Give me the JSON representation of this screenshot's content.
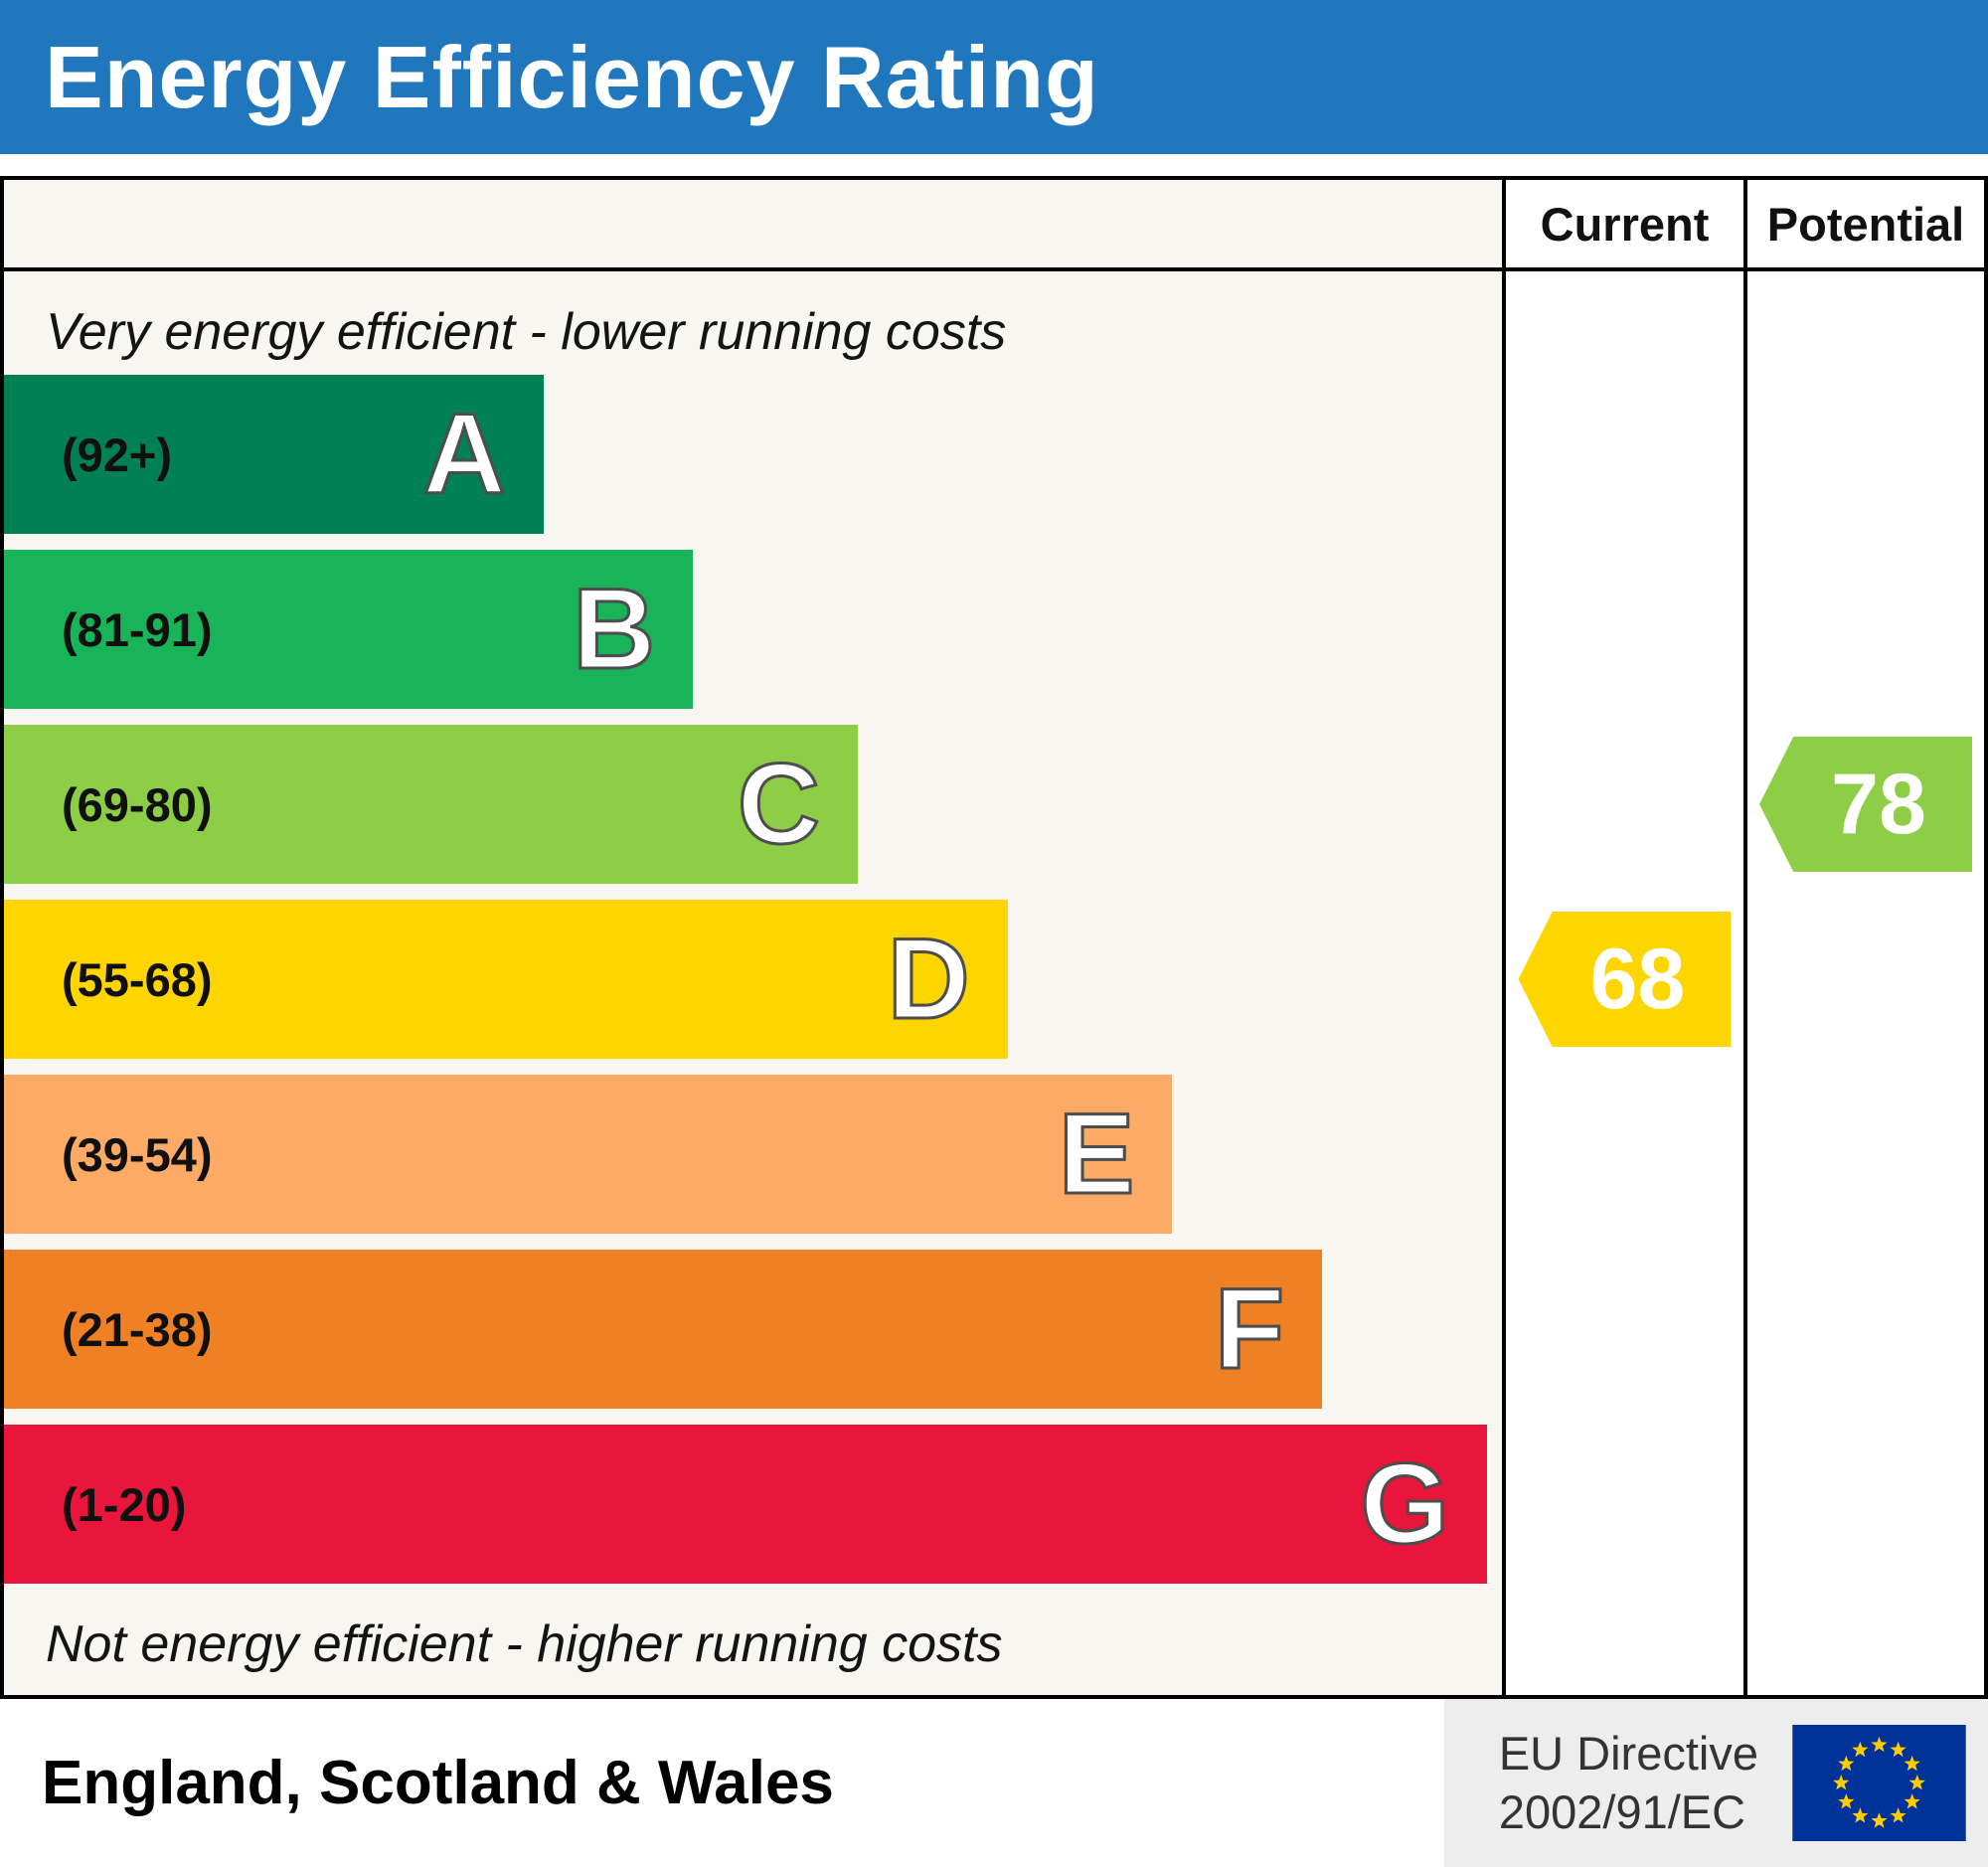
{
  "header": {
    "title": "Energy Efficiency Rating"
  },
  "columns": {
    "current_label": "Current",
    "potential_label": "Potential"
  },
  "scale": {
    "top_note": "Very energy efficient - lower running costs",
    "bottom_note": "Not energy efficient - higher running costs"
  },
  "footer": {
    "region": "England, Scotland & Wales",
    "directive_line1": "EU Directive",
    "directive_line2": "2002/91/EC"
  },
  "colors": {
    "banner_bg": "#2077be",
    "banner_text": "#ffffff",
    "border": "#000000",
    "current_arrow": "#ffd500",
    "potential_arrow": "#8dce46",
    "eu_flag_bg": "#003399",
    "eu_flag_stars": "#ffcc00"
  },
  "chart_data": {
    "type": "bar",
    "title": "Energy Efficiency Rating",
    "xlabel": "",
    "ylabel": "",
    "legend": [
      "Current",
      "Potential"
    ],
    "bands": [
      {
        "letter": "A",
        "range_label": "(92+)",
        "range": [
          92,
          100
        ],
        "color": "#008054",
        "width_pct": 36
      },
      {
        "letter": "B",
        "range_label": "(81-91)",
        "range": [
          81,
          91
        ],
        "color": "#19b459",
        "width_pct": 46
      },
      {
        "letter": "C",
        "range_label": "(69-80)",
        "range": [
          69,
          80
        ],
        "color": "#8dce46",
        "width_pct": 57
      },
      {
        "letter": "D",
        "range_label": "(55-68)",
        "range": [
          55,
          68
        ],
        "color": "#ffd500",
        "width_pct": 67
      },
      {
        "letter": "E",
        "range_label": "(39-54)",
        "range": [
          39,
          54
        ],
        "color": "#fcaa65",
        "width_pct": 78
      },
      {
        "letter": "F",
        "range_label": "(21-38)",
        "range": [
          21,
          38
        ],
        "color": "#ef8023",
        "width_pct": 88
      },
      {
        "letter": "G",
        "range_label": "(1-20)",
        "range": [
          1,
          20
        ],
        "color": "#e9153b",
        "width_pct": 99
      }
    ],
    "current": {
      "value": 68,
      "band": "D",
      "band_index": 3,
      "color": "#ffd500"
    },
    "potential": {
      "value": 78,
      "band": "C",
      "band_index": 2,
      "color": "#8dce46"
    }
  }
}
